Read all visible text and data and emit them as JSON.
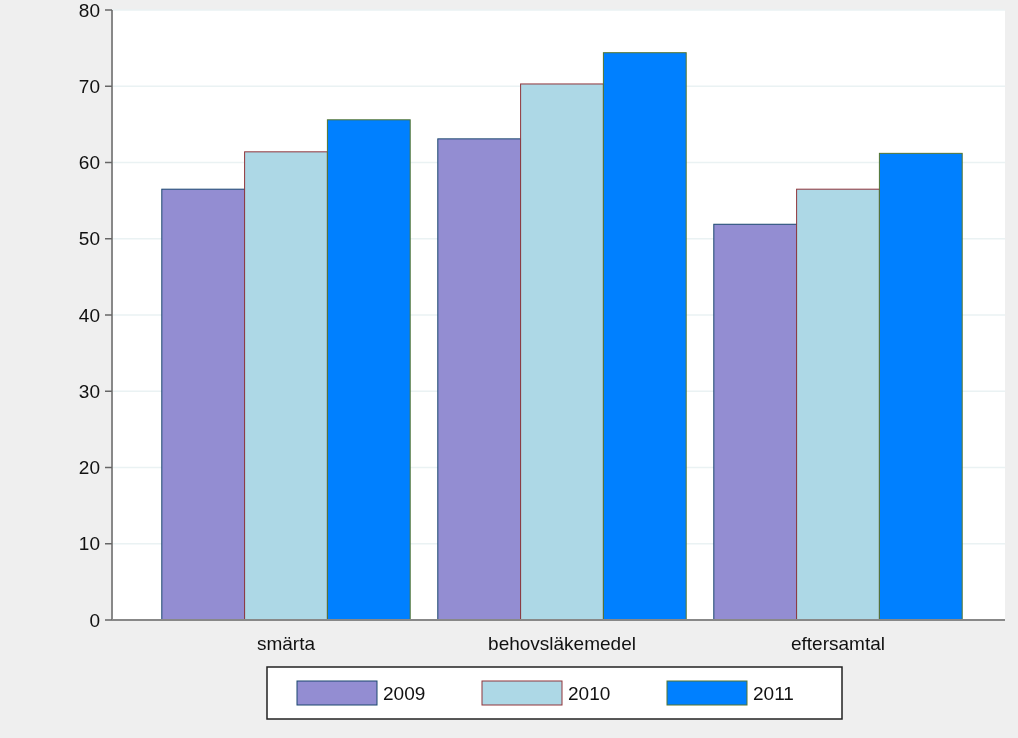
{
  "chart_data": {
    "type": "bar",
    "categories": [
      "smärta",
      "behovsläkemedel",
      "eftersamtal"
    ],
    "series": [
      {
        "name": "2009",
        "color": "#938dd2",
        "values": [
          56.5,
          63.1,
          51.9
        ]
      },
      {
        "name": "2010",
        "color": "#add8e6",
        "values": [
          61.4,
          70.3,
          56.5
        ]
      },
      {
        "name": "2011",
        "color": "#0080ff",
        "values": [
          65.6,
          74.4,
          61.2
        ]
      }
    ],
    "ylim": [
      0,
      80
    ],
    "yticks": [
      0,
      10,
      20,
      30,
      40,
      50,
      60,
      70,
      80
    ],
    "grid": "y",
    "legend": "bottom"
  }
}
